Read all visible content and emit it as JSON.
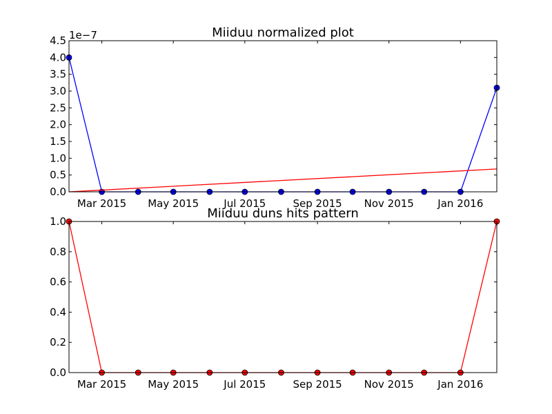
{
  "chart_data": [
    {
      "type": "line",
      "title": "Miiduu normalized plot",
      "offset_label": "1e−7",
      "x_ticks": [
        "Mar 2015",
        "May 2015",
        "Jul 2015",
        "Sep 2015",
        "Nov 2015",
        "Jan 2016"
      ],
      "y_ticks": [
        "0.0",
        "0.5",
        "1.0",
        "1.5",
        "2.0",
        "2.5",
        "3.0",
        "3.5",
        "4.0",
        "4.5"
      ],
      "ylim": [
        0,
        4.5e-07
      ],
      "xlim": [
        "2015-02-01",
        "2016-02-01"
      ],
      "grid": false,
      "series": [
        {
          "color": "#0000ff",
          "marker": "circle",
          "x": [
            "2015-02-01",
            "2015-03-01",
            "2015-04-01",
            "2015-05-01",
            "2015-06-01",
            "2015-07-01",
            "2015-08-01",
            "2015-09-01",
            "2015-10-01",
            "2015-11-01",
            "2015-12-01",
            "2016-01-01",
            "2016-02-01"
          ],
          "y": [
            4e-07,
            0,
            0,
            0,
            0,
            0,
            0,
            0,
            0,
            0,
            0,
            0,
            3.1e-07
          ]
        },
        {
          "color": "#ff0000",
          "marker": "none",
          "x": [
            "2015-02-01",
            "2016-02-01"
          ],
          "y": [
            0,
            6.8e-08
          ]
        }
      ]
    },
    {
      "type": "line",
      "title": "Miiduu duns hits pattern",
      "x_ticks": [
        "Mar 2015",
        "May 2015",
        "Jul 2015",
        "Sep 2015",
        "Nov 2015",
        "Jan 2016"
      ],
      "y_ticks": [
        "0.0",
        "0.2",
        "0.4",
        "0.6",
        "0.8",
        "1.0"
      ],
      "ylim": [
        0,
        1.0
      ],
      "xlim": [
        "2015-02-01",
        "2016-02-01"
      ],
      "grid": false,
      "series": [
        {
          "color": "#ff0000",
          "marker": "circle",
          "x": [
            "2015-02-01",
            "2015-03-01",
            "2015-04-01",
            "2015-05-01",
            "2015-06-01",
            "2015-07-01",
            "2015-08-01",
            "2015-09-01",
            "2015-10-01",
            "2015-11-01",
            "2015-12-01",
            "2016-01-01",
            "2016-02-01"
          ],
          "y": [
            1,
            0,
            0,
            0,
            0,
            0,
            0,
            0,
            0,
            0,
            0,
            0,
            1
          ]
        }
      ]
    }
  ]
}
